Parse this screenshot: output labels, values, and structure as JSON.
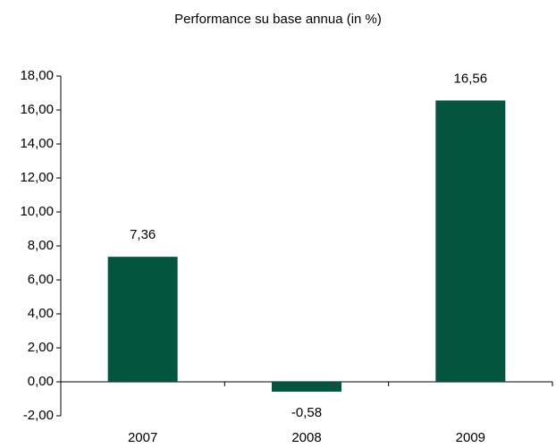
{
  "chart_data": {
    "type": "bar",
    "title": "Performance su base annua (in %)",
    "categories": [
      "2007",
      "2008",
      "2009"
    ],
    "values": [
      7.36,
      -0.58,
      16.56
    ],
    "value_labels": [
      "7,36",
      "-0,58",
      "16,56"
    ],
    "color": "#04553e",
    "ylim": [
      -2,
      18
    ],
    "yticks": [
      {
        "value": -2,
        "label": "-2,00"
      },
      {
        "value": 0,
        "label": "0,00"
      },
      {
        "value": 2,
        "label": "2,00"
      },
      {
        "value": 4,
        "label": "4,00"
      },
      {
        "value": 6,
        "label": "6,00"
      },
      {
        "value": 8,
        "label": "8,00"
      },
      {
        "value": 10,
        "label": "10,00"
      },
      {
        "value": 12,
        "label": "12,00"
      },
      {
        "value": 14,
        "label": "14,00"
      },
      {
        "value": 16,
        "label": "16,00"
      },
      {
        "value": 18,
        "label": "18,00"
      }
    ],
    "grid": false
  }
}
